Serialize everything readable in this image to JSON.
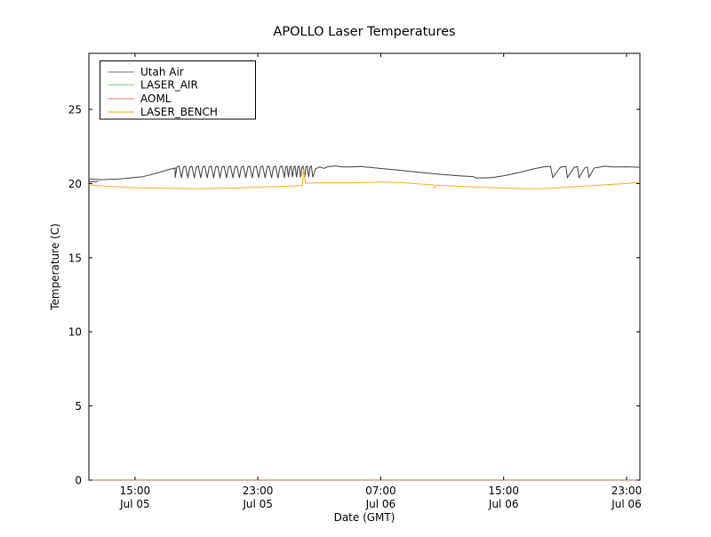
{
  "chart_data": {
    "type": "line",
    "title": "APOLLO Laser Temperatures",
    "xlabel": "Date (GMT)",
    "ylabel": "Temperature (C)",
    "x_unit_note": "hours since Jul 05 12:00 GMT",
    "xlim": [
      0,
      35.87
    ],
    "ylim": [
      0,
      28.78
    ],
    "grid": false,
    "legend_position": "upper left",
    "x_ticks": [
      {
        "h": 3,
        "time": "15:00",
        "date": "Jul 05"
      },
      {
        "h": 11,
        "time": "23:00",
        "date": "Jul 05"
      },
      {
        "h": 19,
        "time": "07:00",
        "date": "Jul 06"
      },
      {
        "h": 27,
        "time": "15:00",
        "date": "Jul 06"
      },
      {
        "h": 35,
        "time": "23:00",
        "date": "Jul 06"
      }
    ],
    "y_ticks": [
      0,
      5,
      10,
      15,
      20,
      25
    ],
    "series": [
      {
        "name": "Utah Air",
        "color": "#3f3f3f",
        "legend_color": "#a3a3a3",
        "opacity": 1,
        "segments": [
          {
            "type": "points",
            "pts": [
              [
                0,
                20.32
              ],
              [
                0.7,
                20.26
              ],
              [
                2.0,
                20.31
              ],
              [
                3.5,
                20.46
              ],
              [
                4.5,
                20.72
              ],
              [
                5.2,
                20.95
              ],
              [
                5.61,
                21.05
              ]
            ]
          },
          {
            "type": "sawtooth",
            "h0": 5.61,
            "h1": 12.73,
            "n": 17,
            "top": 21.17,
            "bottom": 20.38
          },
          {
            "type": "sawtooth",
            "h0": 12.73,
            "h1": 14.58,
            "n": 7,
            "top": 21.17,
            "bottom": 20.42
          },
          {
            "type": "points",
            "pts": [
              [
                14.75,
                20.98
              ],
              [
                15.0,
                21.12
              ],
              [
                15.3,
                21.03
              ],
              [
                15.6,
                21.15
              ],
              [
                16.1,
                21.18
              ],
              [
                16.5,
                21.12
              ],
              [
                17.1,
                21.12
              ],
              [
                17.7,
                21.15
              ],
              [
                18.2,
                21.1
              ],
              [
                19.1,
                21.01
              ],
              [
                20.3,
                20.89
              ],
              [
                21.4,
                20.77
              ],
              [
                22.9,
                20.62
              ],
              [
                24.0,
                20.53
              ],
              [
                25.0,
                20.47
              ],
              [
                25.2,
                20.38
              ],
              [
                25.8,
                20.38
              ],
              [
                26.3,
                20.41
              ],
              [
                27.2,
                20.56
              ],
              [
                28.1,
                20.77
              ],
              [
                28.9,
                20.98
              ],
              [
                29.6,
                21.12
              ],
              [
                30.0,
                21.16
              ],
              [
                30.05,
                21.16
              ],
              [
                30.2,
                20.4
              ],
              [
                30.7,
                21.1
              ],
              [
                30.95,
                21.14
              ],
              [
                31.05,
                21.16
              ],
              [
                31.15,
                20.4
              ],
              [
                31.6,
                21.1
              ],
              [
                31.8,
                21.14
              ],
              [
                31.9,
                20.4
              ],
              [
                32.3,
                21.08
              ],
              [
                32.45,
                21.12
              ],
              [
                32.55,
                20.42
              ],
              [
                32.9,
                21.05
              ],
              [
                33.2,
                21.1
              ],
              [
                33.6,
                21.17
              ],
              [
                34.0,
                21.12
              ],
              [
                34.5,
                21.12
              ],
              [
                35.0,
                21.13
              ],
              [
                35.87,
                21.1
              ]
            ]
          }
        ]
      },
      {
        "name": "LASER_AIR",
        "color": "#9fd49f",
        "legend_color": "#9fd49f",
        "opacity": 0.6,
        "segments": [
          {
            "type": "points",
            "pts": [
              [
                0,
                0
              ],
              [
                35.87,
                0
              ]
            ]
          }
        ]
      },
      {
        "name": "AOML",
        "color": "#e06a5a",
        "legend_color": "#f4a0a0",
        "opacity": 0.65,
        "segments": [
          {
            "type": "points",
            "pts": [
              [
                0,
                0
              ],
              [
                35.87,
                0
              ]
            ]
          }
        ]
      },
      {
        "name": "LASER_BENCH",
        "color": "#ffa81e",
        "legend_color": "#ffc34d",
        "opacity": 1,
        "segments": [
          {
            "type": "points",
            "pts": [
              [
                0,
                19.92
              ],
              [
                1.2,
                19.81
              ],
              [
                2.9,
                19.72
              ],
              [
                4.6,
                19.69
              ],
              [
                6.9,
                19.66
              ],
              [
                9.3,
                19.69
              ],
              [
                11.6,
                19.78
              ],
              [
                13.3,
                19.84
              ],
              [
                13.9,
                19.87
              ],
              [
                13.98,
                20.97
              ],
              [
                14.1,
                20.02
              ],
              [
                15.0,
                20.05
              ],
              [
                17.4,
                20.05
              ],
              [
                19.1,
                20.1
              ],
              [
                20.3,
                20.07
              ],
              [
                21.4,
                19.98
              ],
              [
                22.4,
                19.92
              ],
              [
                22.5,
                19.72
              ],
              [
                22.62,
                19.89
              ],
              [
                23.7,
                19.84
              ],
              [
                25.5,
                19.75
              ],
              [
                27.2,
                19.69
              ],
              [
                28.9,
                19.65
              ],
              [
                30.1,
                19.68
              ],
              [
                31.8,
                19.8
              ],
              [
                33.6,
                19.92
              ],
              [
                34.7,
                19.98
              ],
              [
                35.87,
                20.07
              ]
            ]
          }
        ]
      }
    ],
    "extra_traces": [
      {
        "name": "utah-air-start-stub",
        "color": "#3f3f3f",
        "pts": [
          [
            0,
            20.13
          ],
          [
            0.6,
            20.13
          ]
        ]
      }
    ]
  }
}
